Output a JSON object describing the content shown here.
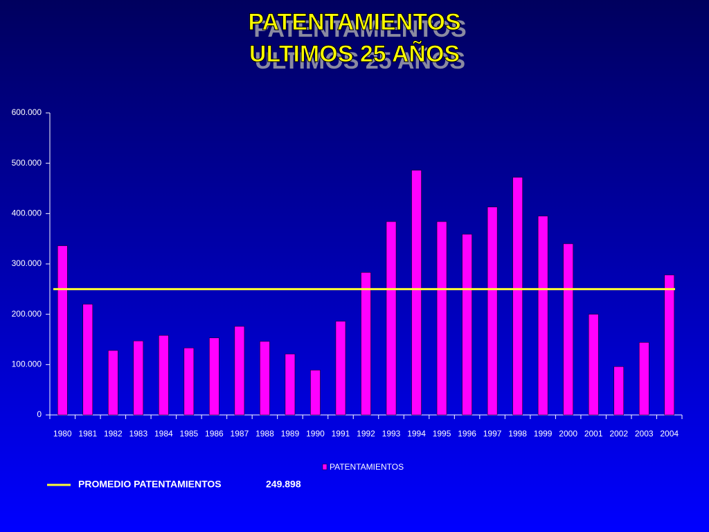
{
  "chart_data": {
    "type": "bar",
    "title": [
      "PATENTAMIENTOS",
      "ULTIMOS 25 AÑOS"
    ],
    "categories": [
      "1980",
      "1981",
      "1982",
      "1983",
      "1984",
      "1985",
      "1986",
      "1987",
      "1988",
      "1989",
      "1990",
      "1991",
      "1992",
      "1993",
      "1994",
      "1995",
      "1996",
      "1997",
      "1998",
      "1999",
      "2000",
      "2001",
      "2002",
      "2003",
      "2004"
    ],
    "series": [
      {
        "name": "PATENTAMIENTOS",
        "color": "#ff00ff",
        "values": [
          336000,
          220000,
          128000,
          147000,
          158000,
          133000,
          153000,
          176000,
          146000,
          121000,
          89000,
          186000,
          283000,
          384000,
          486000,
          384000,
          359000,
          413000,
          472000,
          395000,
          340000,
          200000,
          96000,
          144000,
          278000
        ]
      }
    ],
    "average_line": {
      "name": "PROMEDIO PATENTAMIENTOS",
      "value": 249898,
      "value_label": "249.898",
      "color": "#ffff33"
    },
    "ylim": [
      0,
      600000
    ],
    "yticks": [
      0,
      {
        "value": 100000,
        "label": "100.000"
      },
      {
        "value": 200000,
        "label": "200.000"
      },
      {
        "value": 300000,
        "label": "300.000"
      },
      {
        "value": 400000,
        "label": "400.000"
      },
      {
        "value": 500000,
        "label": "500.000"
      },
      {
        "value": 600000,
        "label": "600.000"
      }
    ],
    "grid": false
  }
}
